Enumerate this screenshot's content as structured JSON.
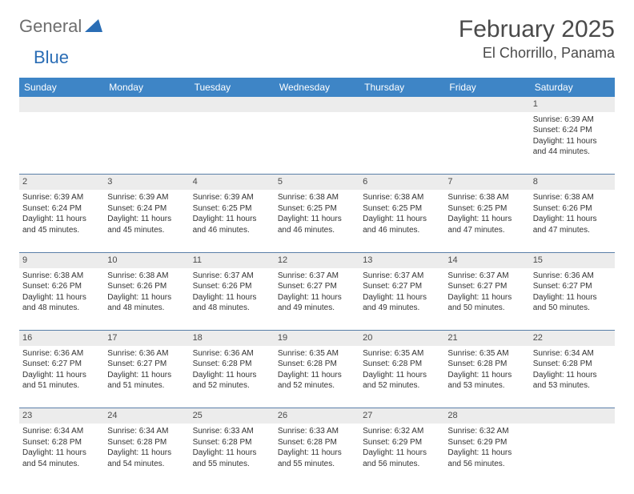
{
  "brand": {
    "part1": "General",
    "part2": "Blue"
  },
  "title": "February 2025",
  "location": "El Chorrillo, Panama",
  "colors": {
    "header_bg": "#3e85c6",
    "header_text": "#ffffff",
    "daynum_bg": "#ececec",
    "row_border": "#5a7fa8",
    "text": "#333333",
    "brand_gray": "#6e6e6e",
    "brand_blue": "#2a6db5"
  },
  "weekdays": [
    "Sunday",
    "Monday",
    "Tuesday",
    "Wednesday",
    "Thursday",
    "Friday",
    "Saturday"
  ],
  "weeks": [
    {
      "nums": [
        "",
        "",
        "",
        "",
        "",
        "",
        "1"
      ],
      "cells": [
        null,
        null,
        null,
        null,
        null,
        null,
        {
          "sunrise": "6:39 AM",
          "sunset": "6:24 PM",
          "day_h": "11",
          "day_m": "44"
        }
      ]
    },
    {
      "nums": [
        "2",
        "3",
        "4",
        "5",
        "6",
        "7",
        "8"
      ],
      "cells": [
        {
          "sunrise": "6:39 AM",
          "sunset": "6:24 PM",
          "day_h": "11",
          "day_m": "45"
        },
        {
          "sunrise": "6:39 AM",
          "sunset": "6:24 PM",
          "day_h": "11",
          "day_m": "45"
        },
        {
          "sunrise": "6:39 AM",
          "sunset": "6:25 PM",
          "day_h": "11",
          "day_m": "46"
        },
        {
          "sunrise": "6:38 AM",
          "sunset": "6:25 PM",
          "day_h": "11",
          "day_m": "46"
        },
        {
          "sunrise": "6:38 AM",
          "sunset": "6:25 PM",
          "day_h": "11",
          "day_m": "46"
        },
        {
          "sunrise": "6:38 AM",
          "sunset": "6:25 PM",
          "day_h": "11",
          "day_m": "47"
        },
        {
          "sunrise": "6:38 AM",
          "sunset": "6:26 PM",
          "day_h": "11",
          "day_m": "47"
        }
      ]
    },
    {
      "nums": [
        "9",
        "10",
        "11",
        "12",
        "13",
        "14",
        "15"
      ],
      "cells": [
        {
          "sunrise": "6:38 AM",
          "sunset": "6:26 PM",
          "day_h": "11",
          "day_m": "48"
        },
        {
          "sunrise": "6:38 AM",
          "sunset": "6:26 PM",
          "day_h": "11",
          "day_m": "48"
        },
        {
          "sunrise": "6:37 AM",
          "sunset": "6:26 PM",
          "day_h": "11",
          "day_m": "48"
        },
        {
          "sunrise": "6:37 AM",
          "sunset": "6:27 PM",
          "day_h": "11",
          "day_m": "49"
        },
        {
          "sunrise": "6:37 AM",
          "sunset": "6:27 PM",
          "day_h": "11",
          "day_m": "49"
        },
        {
          "sunrise": "6:37 AM",
          "sunset": "6:27 PM",
          "day_h": "11",
          "day_m": "50"
        },
        {
          "sunrise": "6:36 AM",
          "sunset": "6:27 PM",
          "day_h": "11",
          "day_m": "50"
        }
      ]
    },
    {
      "nums": [
        "16",
        "17",
        "18",
        "19",
        "20",
        "21",
        "22"
      ],
      "cells": [
        {
          "sunrise": "6:36 AM",
          "sunset": "6:27 PM",
          "day_h": "11",
          "day_m": "51"
        },
        {
          "sunrise": "6:36 AM",
          "sunset": "6:27 PM",
          "day_h": "11",
          "day_m": "51"
        },
        {
          "sunrise": "6:36 AM",
          "sunset": "6:28 PM",
          "day_h": "11",
          "day_m": "52"
        },
        {
          "sunrise": "6:35 AM",
          "sunset": "6:28 PM",
          "day_h": "11",
          "day_m": "52"
        },
        {
          "sunrise": "6:35 AM",
          "sunset": "6:28 PM",
          "day_h": "11",
          "day_m": "52"
        },
        {
          "sunrise": "6:35 AM",
          "sunset": "6:28 PM",
          "day_h": "11",
          "day_m": "53"
        },
        {
          "sunrise": "6:34 AM",
          "sunset": "6:28 PM",
          "day_h": "11",
          "day_m": "53"
        }
      ]
    },
    {
      "nums": [
        "23",
        "24",
        "25",
        "26",
        "27",
        "28",
        ""
      ],
      "cells": [
        {
          "sunrise": "6:34 AM",
          "sunset": "6:28 PM",
          "day_h": "11",
          "day_m": "54"
        },
        {
          "sunrise": "6:34 AM",
          "sunset": "6:28 PM",
          "day_h": "11",
          "day_m": "54"
        },
        {
          "sunrise": "6:33 AM",
          "sunset": "6:28 PM",
          "day_h": "11",
          "day_m": "55"
        },
        {
          "sunrise": "6:33 AM",
          "sunset": "6:28 PM",
          "day_h": "11",
          "day_m": "55"
        },
        {
          "sunrise": "6:32 AM",
          "sunset": "6:29 PM",
          "day_h": "11",
          "day_m": "56"
        },
        {
          "sunrise": "6:32 AM",
          "sunset": "6:29 PM",
          "day_h": "11",
          "day_m": "56"
        },
        null
      ]
    }
  ],
  "labels": {
    "sunrise": "Sunrise:",
    "sunset": "Sunset:",
    "daylight_prefix": "Daylight:",
    "hours_word": "hours",
    "and_word": "and",
    "minutes_word": "minutes."
  }
}
